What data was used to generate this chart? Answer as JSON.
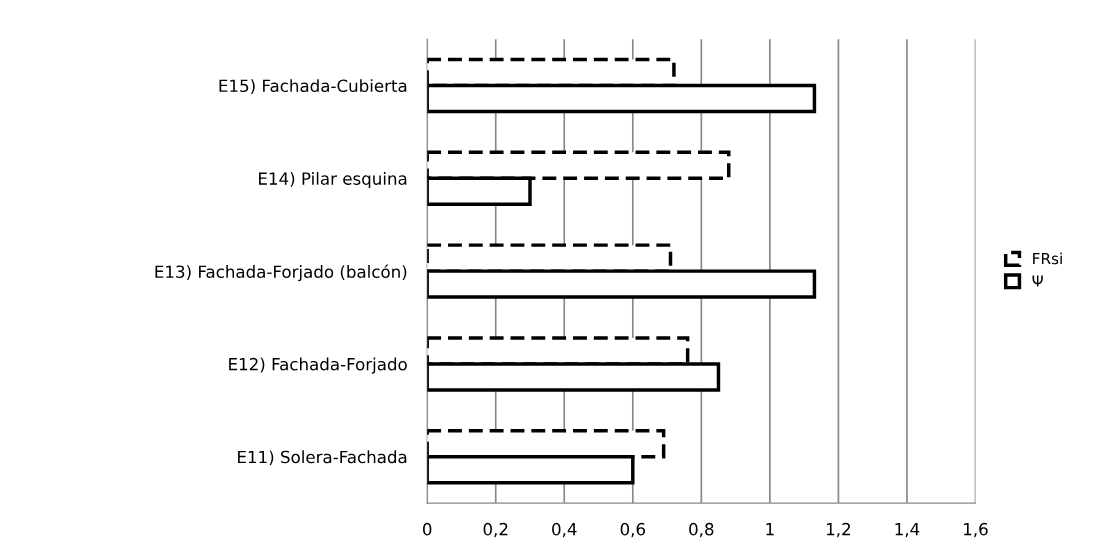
{
  "chart_data": {
    "type": "bar",
    "orientation": "horizontal",
    "categories": [
      "E15) Fachada-Cubierta",
      "E14) Pilar esquina",
      "E13) Fachada-Forjado (balcón)",
      "E12) Fachada-Forjado",
      "E11) Solera-Fachada"
    ],
    "series": [
      {
        "name": "FRsi",
        "color": "#000000",
        "line_style": "dashed",
        "values": [
          0.72,
          0.88,
          0.71,
          0.76,
          0.69
        ]
      },
      {
        "name": "Ψ",
        "color": "#000000",
        "line_style": "solid",
        "values": [
          1.13,
          0.3,
          1.13,
          0.85,
          0.6
        ]
      }
    ],
    "xlim": [
      0,
      1.6
    ],
    "xticks": [
      0,
      {
        "value": 0.2,
        "label": "0,2"
      },
      {
        "value": 0.4,
        "label": "0,4"
      },
      {
        "value": 0.6,
        "label": "0,6"
      },
      {
        "value": 0.8,
        "label": "0,8"
      },
      1,
      {
        "value": 1.2,
        "label": "1,2"
      },
      {
        "value": 1.4,
        "label": "1,4"
      },
      {
        "value": 1.6,
        "label": "1,6"
      }
    ],
    "grid": "x",
    "legend": "right"
  }
}
